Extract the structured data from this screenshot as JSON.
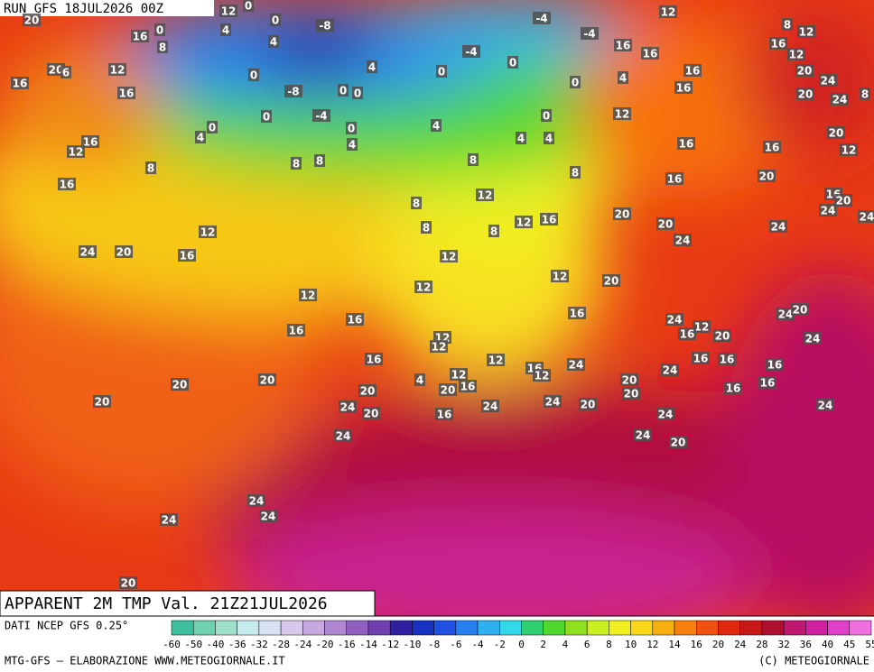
{
  "header": {
    "run": "RUN GFS 18JUL2026 00Z"
  },
  "title": "APPARENT 2M TMP Val. 21Z21JUL2026",
  "map": {
    "labels": [
      20,
      16,
      0,
      8,
      12,
      4,
      0,
      0,
      4,
      -8,
      -4,
      12,
      8,
      12,
      16,
      16,
      16,
      -4,
      -4,
      0,
      0,
      4,
      0,
      0,
      -8,
      0,
      12,
      20,
      6,
      16,
      16,
      4,
      0,
      16,
      16,
      12,
      20,
      24,
      20,
      24,
      8,
      12,
      0,
      4,
      0,
      -4,
      0,
      0,
      4,
      16,
      12,
      4,
      4,
      4,
      8,
      8,
      8,
      8,
      16,
      16,
      20,
      12,
      8,
      16,
      20,
      16,
      8,
      8,
      12,
      12,
      16,
      20,
      20,
      24,
      24,
      16,
      24,
      20,
      24,
      12,
      8,
      24,
      20,
      16,
      12,
      12,
      12,
      20,
      12,
      16,
      16,
      16,
      24,
      12,
      16,
      20,
      24,
      20,
      24,
      12,
      12,
      16,
      12,
      16,
      12,
      24,
      24,
      16,
      16,
      16,
      12,
      4,
      16,
      20,
      20,
      20,
      20,
      20,
      16,
      16,
      20,
      24,
      20,
      16,
      24,
      24,
      20,
      24,
      24,
      24,
      24,
      20,
      24,
      24,
      24,
      20,
      20
    ]
  },
  "legend": {
    "ticks": [
      -60,
      -50,
      -40,
      -36,
      -32,
      -28,
      -24,
      -20,
      -16,
      -14,
      -12,
      -10,
      -8,
      -6,
      -4,
      -2,
      0,
      2,
      4,
      6,
      8,
      10,
      12,
      14,
      16,
      20,
      24,
      28,
      32,
      36,
      40,
      45,
      55
    ],
    "colors": [
      "#3fbf9f",
      "#6fd0b2",
      "#9fe0cc",
      "#c7ecf0",
      "#d8e0f4",
      "#d8c8ec",
      "#c8a8e0",
      "#b088d0",
      "#9060c0",
      "#7040b0",
      "#3020a0",
      "#1830c0",
      "#2050e0",
      "#2880f0",
      "#30b0f0",
      "#30d8e8",
      "#30d070",
      "#50d830",
      "#90e020",
      "#c8f020",
      "#f0f020",
      "#f8d818",
      "#f8b010",
      "#f88010",
      "#f05010",
      "#e02810",
      "#c81818",
      "#b01030",
      "#c01870",
      "#d020a0",
      "#e040c8",
      "#f070e0"
    ]
  },
  "footer": {
    "source": "DATI NCEP GFS 0.25°",
    "credit": "MTG-GFS — ELABORAZIONE WWW.METEOGIORNALE.IT",
    "copyright": "(C) METEOGIORNALE"
  }
}
